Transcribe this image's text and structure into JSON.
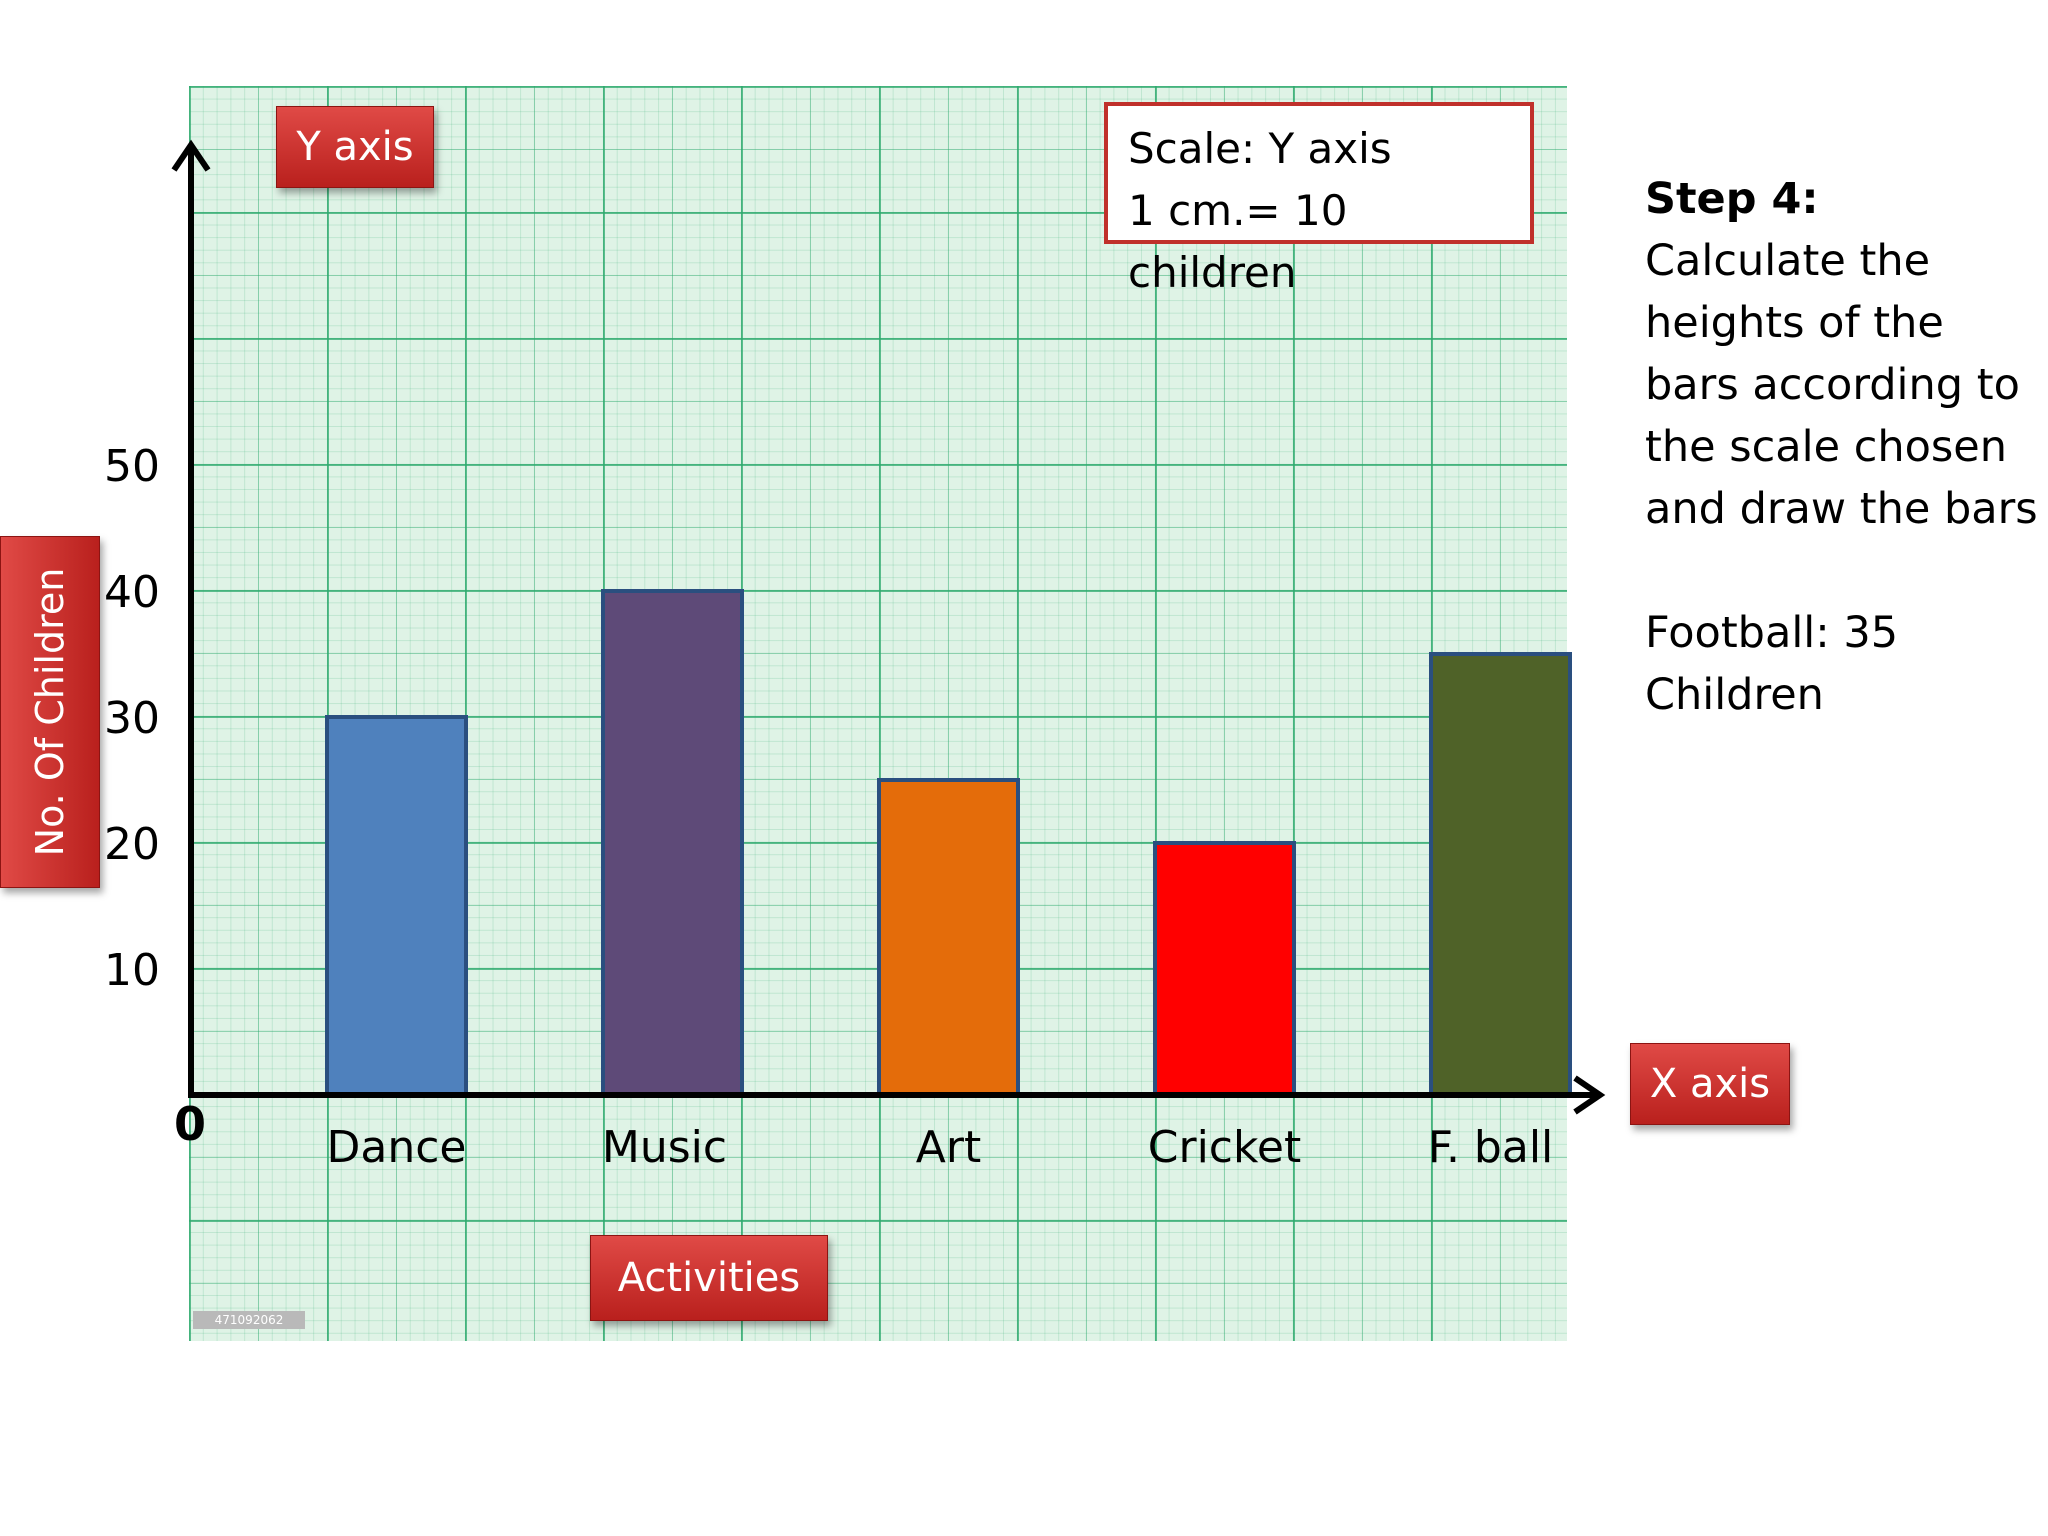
{
  "labels": {
    "y_axis_tag": "Y axis",
    "x_axis_tag": "X axis",
    "ylabel": "No. Of Children",
    "xlabel": "Activities",
    "origin": "0"
  },
  "scale_box": {
    "line1": "Scale: Y axis",
    "line2": "1 cm.= 10 children"
  },
  "side_text": {
    "heading": "Step 4:",
    "lines": [
      "Calculate the",
      "heights of the",
      "bars according to",
      "the scale chosen",
      "and draw the bars"
    ],
    "note_line1": "Football: 35",
    "note_line2": "Children"
  },
  "stamp_text": "471092062",
  "colors": {
    "tag_red": "#c8302c",
    "grid_green": "#2eaa6e",
    "bar_outline": "#2a4f7f"
  },
  "chart_data": {
    "type": "bar",
    "categories": [
      "Dance",
      "Music",
      "Art",
      "Cricket",
      "F. ball"
    ],
    "values": [
      30,
      40,
      25,
      20,
      35
    ],
    "colors": [
      "#4f81bd",
      "#5e4a78",
      "#e46c0a",
      "#ff0000",
      "#4f6228"
    ],
    "yticks": [
      10,
      20,
      30,
      40,
      50
    ],
    "ylim": [
      0,
      75
    ],
    "xlabel": "Activities",
    "ylabel": "No. Of Children",
    "grid": true
  }
}
